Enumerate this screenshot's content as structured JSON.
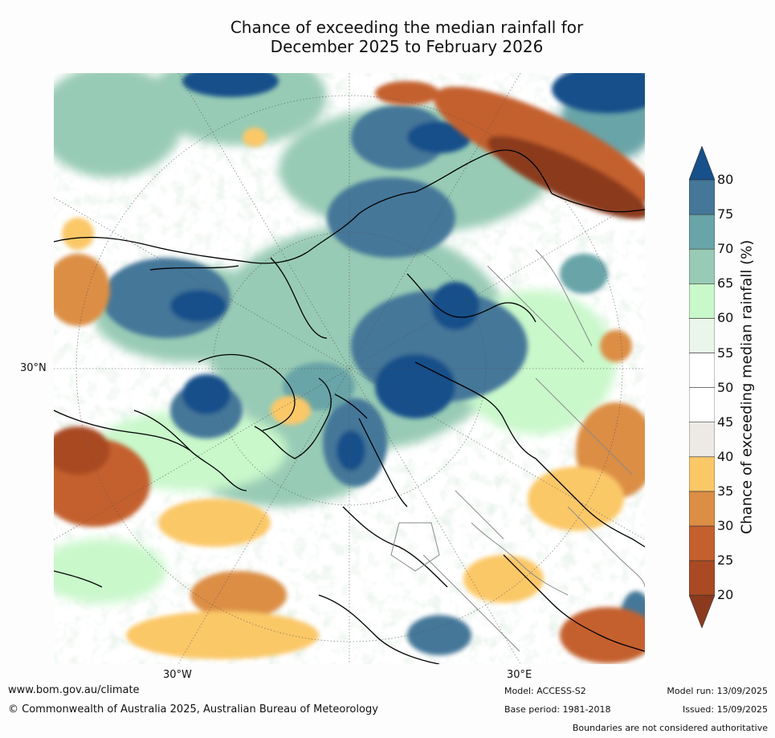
{
  "title": {
    "line1": "Chance of exceeding the median rainfall for",
    "line2": "December 2025 to February 2026"
  },
  "map": {
    "lat_label": "30°N",
    "lon_labels": [
      "30°W",
      "30°E"
    ]
  },
  "legend": {
    "title": "Chance of exceeding median rainfall (%)",
    "ticks": [
      "20",
      "25",
      "30",
      "35",
      "40",
      "45",
      "50",
      "55",
      "60",
      "65",
      "70",
      "75",
      "80"
    ],
    "bins": [
      {
        "range": "<20",
        "color": "#8b3a1e"
      },
      {
        "range": "20-25",
        "color": "#a94a24"
      },
      {
        "range": "25-30",
        "color": "#c4602e"
      },
      {
        "range": "30-35",
        "color": "#dc8e45"
      },
      {
        "range": "35-40",
        "color": "#fbc868"
      },
      {
        "range": "40-45",
        "color": "#edeae6"
      },
      {
        "range": "45-50",
        "color": "#ffffff"
      },
      {
        "range": "50-55",
        "color": "#ffffff"
      },
      {
        "range": "55-60",
        "color": "#e9f6e9"
      },
      {
        "range": "60-65",
        "color": "#c9f8cb"
      },
      {
        "range": "65-70",
        "color": "#98cbb5"
      },
      {
        "range": "70-75",
        "color": "#69a4a8"
      },
      {
        "range": "75-80",
        "color": "#457799"
      },
      {
        "range": ">80",
        "color": "#17508a"
      }
    ]
  },
  "footer": {
    "website": "www.bom.gov.au/climate",
    "copyright": "© Commonwealth of Australia 2025, Australian Bureau of Meteorology",
    "model": "Model: ACCESS-S2",
    "base_period": "Base period: 1981-2018",
    "model_run": "Model run: 13/09/2025",
    "issued": "Issued: 15/09/2025",
    "disclaimer": "Boundaries are not considered authoritative"
  }
}
